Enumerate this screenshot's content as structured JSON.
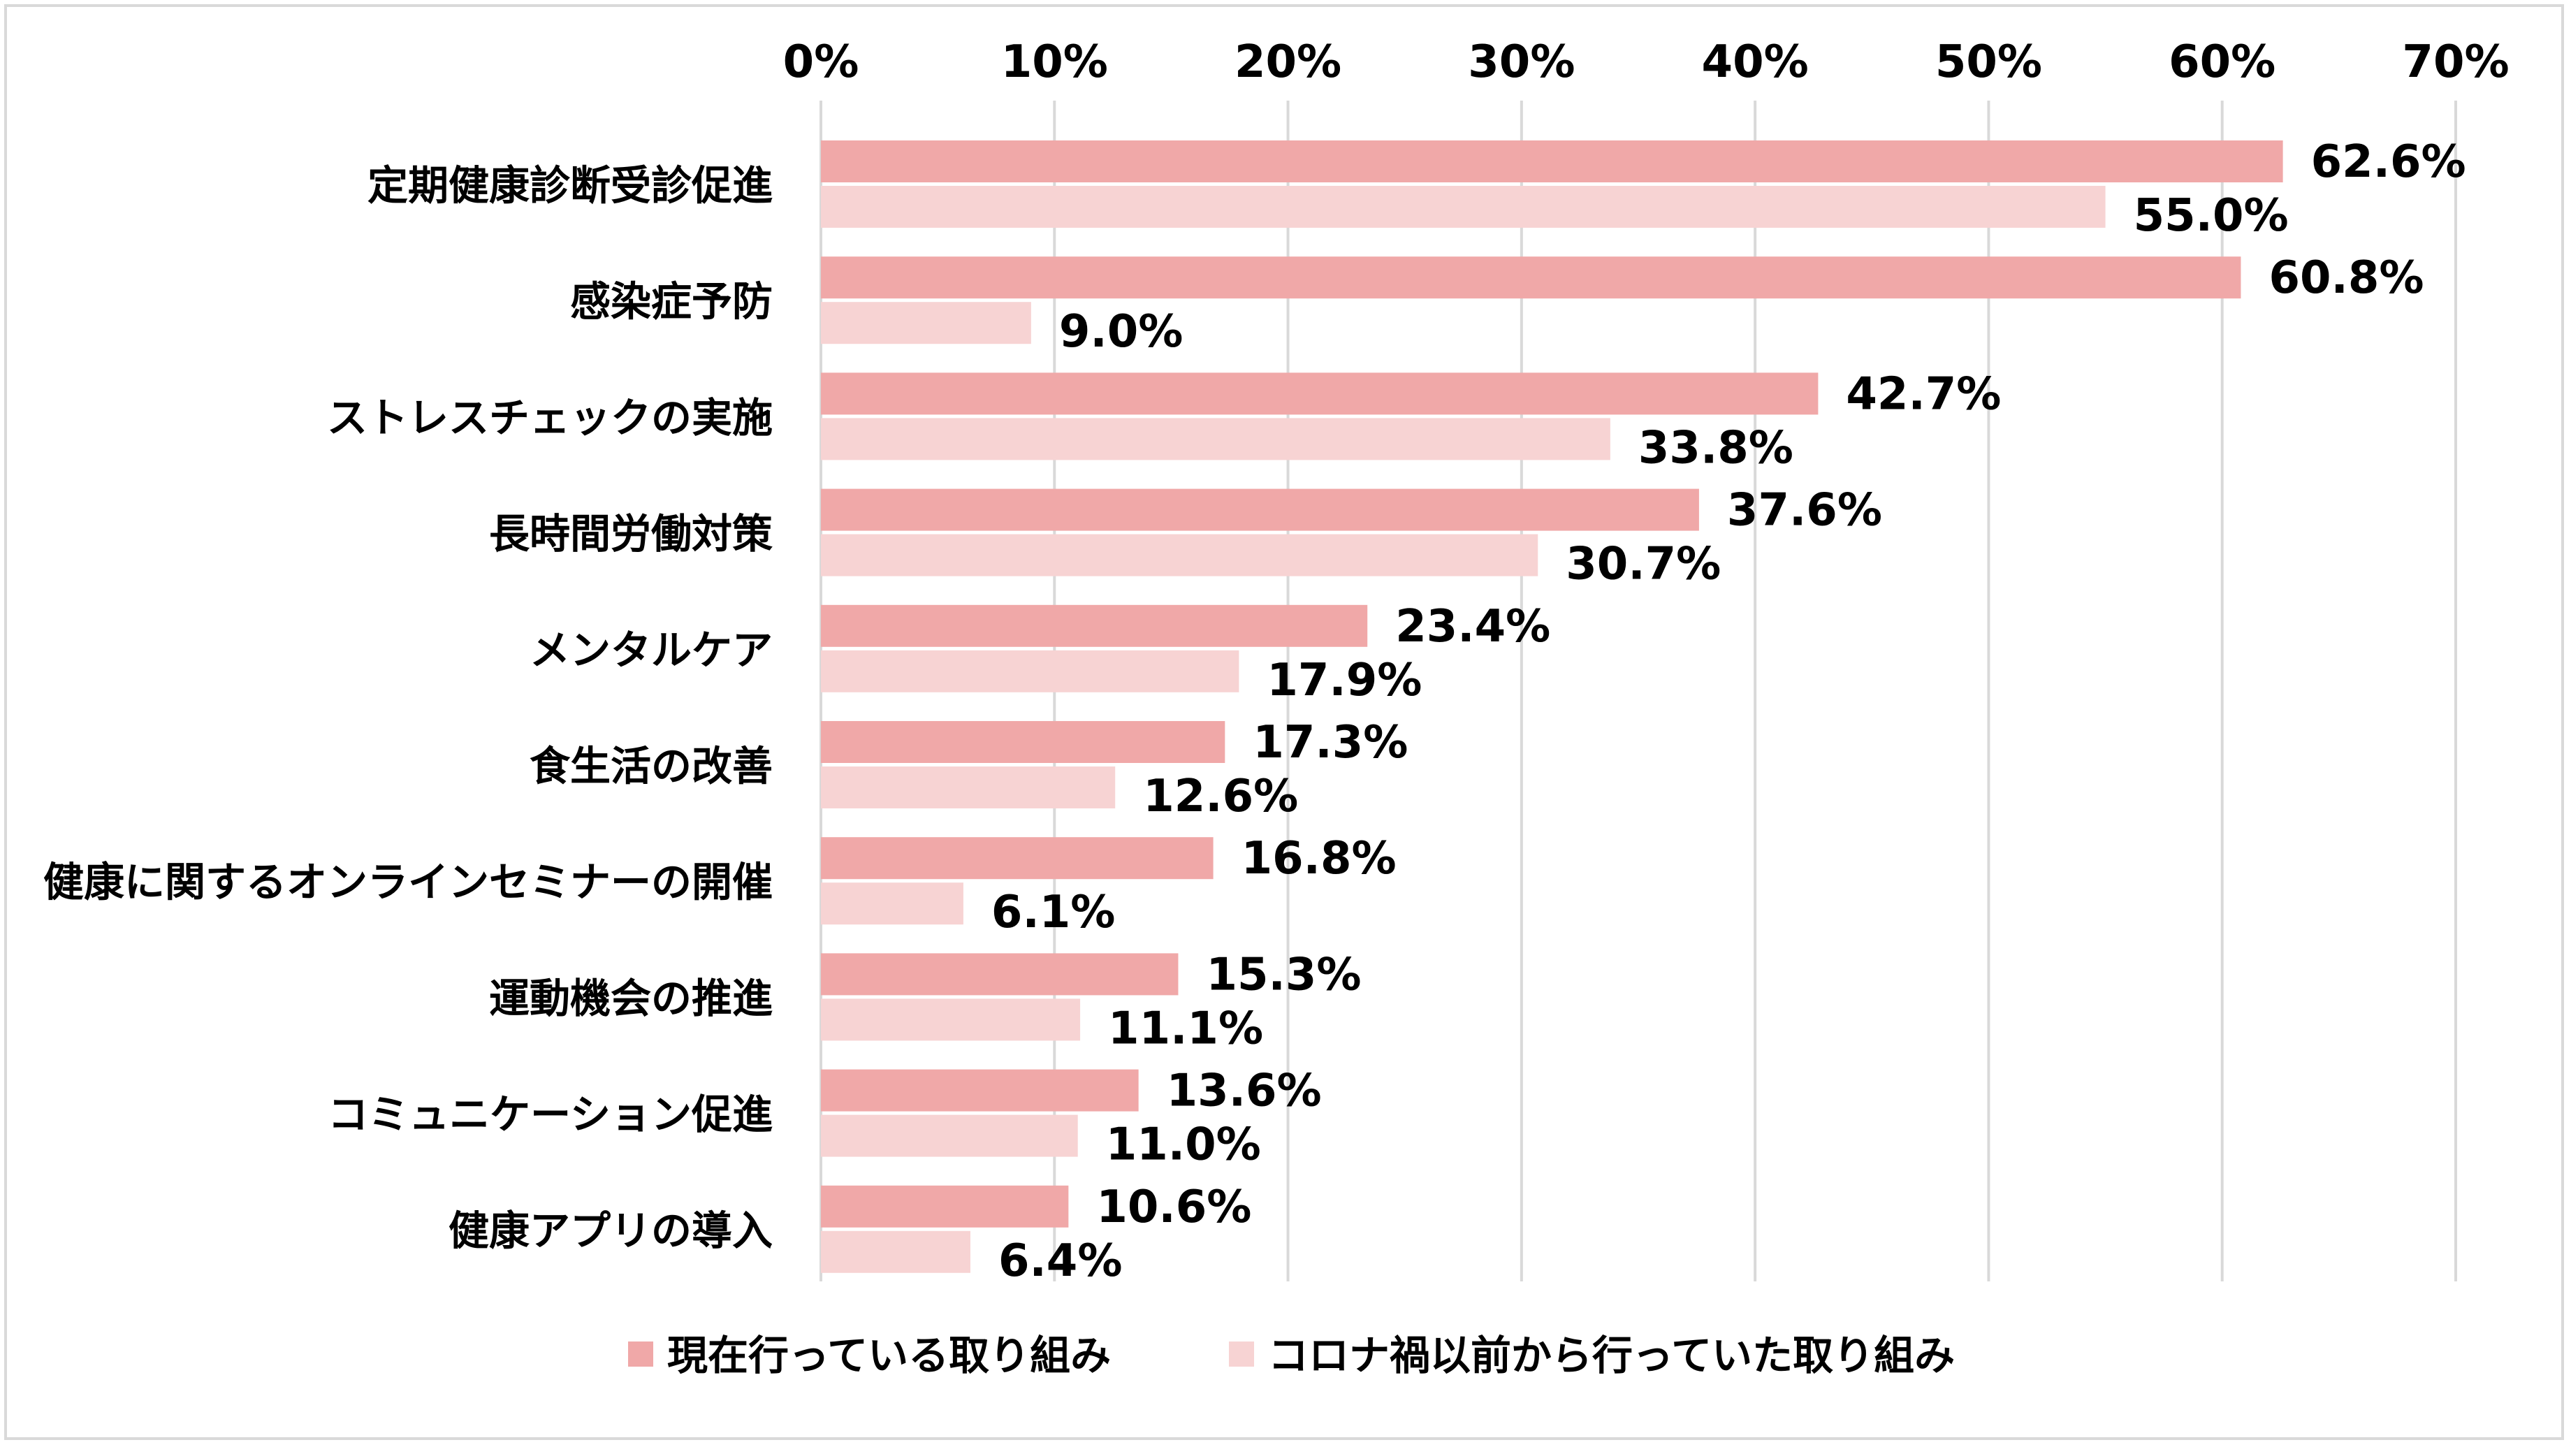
{
  "chart_data": {
    "type": "bar",
    "orientation": "horizontal",
    "categories": [
      "定期健康診断受診促進",
      "感染症予防",
      "ストレスチェックの実施",
      "長時間労働対策",
      "メンタルケア",
      "食生活の改善",
      "健康に関するオンラインセミナーの開催",
      "運動機会の推進",
      "コミュニケーション促進",
      "健康アプリの導入"
    ],
    "series": [
      {
        "name": "現在行っている取り組み",
        "color": "#F0A8A8",
        "values": [
          62.6,
          60.8,
          42.7,
          37.6,
          23.4,
          17.3,
          16.8,
          15.3,
          13.6,
          10.6
        ],
        "labels": [
          "62.6%",
          "60.8%",
          "42.7%",
          "37.6%",
          "23.4%",
          "17.3%",
          "16.8%",
          "15.3%",
          "13.6%",
          "10.6%"
        ]
      },
      {
        "name": "コロナ禍以前から行っていた取り組み",
        "color": "#F7D3D3",
        "values": [
          55.0,
          9.0,
          33.8,
          30.7,
          17.9,
          12.6,
          6.1,
          11.1,
          11.0,
          6.4
        ],
        "labels": [
          "55.0%",
          "9.0%",
          "33.8%",
          "30.7%",
          "17.9%",
          "12.6%",
          "6.1%",
          "11.1%",
          "11.0%",
          "6.4%"
        ]
      }
    ],
    "xlim": [
      0,
      70
    ],
    "xticks": [
      "0%",
      "10%",
      "20%",
      "30%",
      "40%",
      "50%",
      "60%",
      "70%"
    ],
    "axis_position": "top",
    "grid": true,
    "grid_color": "#D9D9D9",
    "legend_position": "bottom"
  }
}
